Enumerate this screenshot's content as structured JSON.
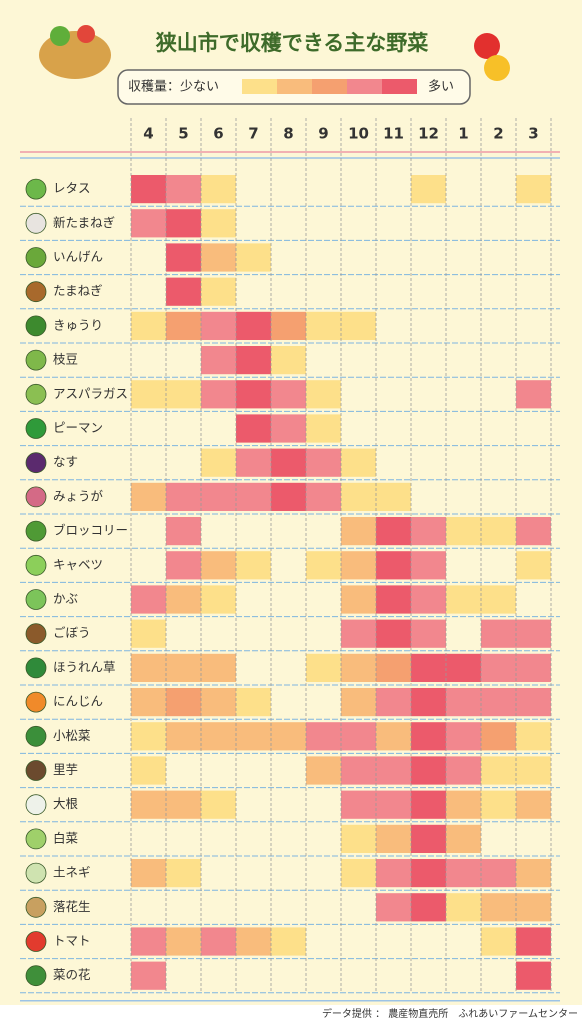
{
  "title": "狭山市で収穫できる主な野菜",
  "legend": {
    "low": "収穫量：少ない",
    "high": "多い",
    "levels": [
      1,
      2,
      3,
      4,
      5
    ],
    "colors": [
      "#fde08a",
      "#f9bc7c",
      "#f5a070",
      "#f2878e",
      "#ec5a6b"
    ]
  },
  "months": [
    "4",
    "5",
    "6",
    "7",
    "8",
    "9",
    "10",
    "11",
    "12",
    "1",
    "2",
    "3"
  ],
  "rows": [
    {
      "name": "レタス",
      "icon": "#6cb84a",
      "levels": [
        5,
        4,
        1,
        null,
        null,
        null,
        null,
        null,
        1,
        null,
        null,
        1
      ]
    },
    {
      "name": "新たまねぎ",
      "icon": "#e8e4e0",
      "levels": [
        4,
        5,
        1,
        null,
        null,
        null,
        null,
        null,
        null,
        null,
        null,
        null
      ]
    },
    {
      "name": "いんげん",
      "icon": "#6aa83a",
      "levels": [
        null,
        5,
        2,
        1,
        null,
        null,
        null,
        null,
        null,
        null,
        null,
        null
      ]
    },
    {
      "name": "たまねぎ",
      "icon": "#a8692c",
      "levels": [
        null,
        5,
        1,
        null,
        null,
        null,
        null,
        null,
        null,
        null,
        null,
        null
      ]
    },
    {
      "name": "きゅうり",
      "icon": "#3d8a2e",
      "levels": [
        1,
        3,
        4,
        5,
        3,
        1,
        1,
        null,
        null,
        null,
        null,
        null
      ]
    },
    {
      "name": "枝豆",
      "icon": "#7fb84a",
      "levels": [
        null,
        null,
        4,
        5,
        1,
        null,
        null,
        null,
        null,
        null,
        null,
        null
      ]
    },
    {
      "name": "アスパラガス",
      "icon": "#8bbf52",
      "levels": [
        1,
        1,
        4,
        5,
        4,
        1,
        null,
        null,
        null,
        null,
        null,
        4
      ]
    },
    {
      "name": "ピーマン",
      "icon": "#2f9a3a",
      "levels": [
        null,
        null,
        null,
        5,
        4,
        1,
        null,
        null,
        null,
        null,
        null,
        null
      ]
    },
    {
      "name": "なす",
      "icon": "#5b2a6e",
      "levels": [
        null,
        null,
        1,
        4,
        5,
        4,
        1,
        null,
        null,
        null,
        null,
        null
      ]
    },
    {
      "name": "みょうが",
      "icon": "#d46a86",
      "levels": [
        2,
        4,
        4,
        4,
        5,
        4,
        1,
        1,
        null,
        null,
        null,
        null
      ]
    },
    {
      "name": "ブロッコリー",
      "icon": "#4f9a35",
      "levels": [
        null,
        4,
        null,
        null,
        null,
        null,
        2,
        5,
        4,
        1,
        1,
        4
      ]
    },
    {
      "name": "キャベツ",
      "icon": "#8ccf5a",
      "levels": [
        null,
        4,
        2,
        1,
        null,
        1,
        2,
        5,
        4,
        null,
        null,
        1
      ]
    },
    {
      "name": "かぶ",
      "icon": "#7cc45a",
      "levels": [
        4,
        2,
        1,
        null,
        null,
        null,
        2,
        5,
        4,
        1,
        1,
        null
      ]
    },
    {
      "name": "ごぼう",
      "icon": "#8b5a2b",
      "levels": [
        1,
        null,
        null,
        null,
        null,
        null,
        4,
        5,
        4,
        null,
        4,
        4
      ]
    },
    {
      "name": "ほうれん草",
      "icon": "#2f8a3a",
      "levels": [
        2,
        2,
        2,
        null,
        null,
        1,
        2,
        3,
        5,
        5,
        4,
        4
      ]
    },
    {
      "name": "にんじん",
      "icon": "#f08a2a",
      "levels": [
        2,
        3,
        2,
        1,
        null,
        null,
        2,
        4,
        5,
        4,
        4,
        4
      ]
    },
    {
      "name": "小松菜",
      "icon": "#3b8f3a",
      "levels": [
        1,
        2,
        2,
        2,
        2,
        4,
        4,
        2,
        5,
        4,
        3,
        1
      ]
    },
    {
      "name": "里芋",
      "icon": "#6b4a2e",
      "levels": [
        1,
        null,
        null,
        null,
        null,
        2,
        4,
        4,
        5,
        4,
        1,
        1
      ]
    },
    {
      "name": "大根",
      "icon": "#eef2ea",
      "levels": [
        2,
        2,
        1,
        null,
        null,
        null,
        4,
        4,
        5,
        2,
        1,
        2
      ]
    },
    {
      "name": "白菜",
      "icon": "#9fd06a",
      "levels": [
        null,
        null,
        null,
        null,
        null,
        null,
        1,
        2,
        5,
        2,
        null,
        null
      ]
    },
    {
      "name": "土ネギ",
      "icon": "#cfe3b0",
      "levels": [
        2,
        1,
        null,
        null,
        null,
        null,
        1,
        4,
        5,
        4,
        4,
        2
      ]
    },
    {
      "name": "落花生",
      "icon": "#c8a060",
      "levels": [
        null,
        null,
        null,
        null,
        null,
        null,
        null,
        4,
        5,
        1,
        2,
        2
      ]
    },
    {
      "name": "トマト",
      "icon": "#e23b2e",
      "levels": [
        4,
        2,
        4,
        2,
        1,
        null,
        null,
        null,
        null,
        null,
        1,
        5
      ]
    },
    {
      "name": "菜の花",
      "icon": "#3f8f3a",
      "levels": [
        4,
        null,
        null,
        null,
        null,
        null,
        null,
        null,
        null,
        null,
        null,
        5
      ]
    }
  ],
  "footer": "データ提供 ： 農産物直売所　ふれあいファームセンター"
}
